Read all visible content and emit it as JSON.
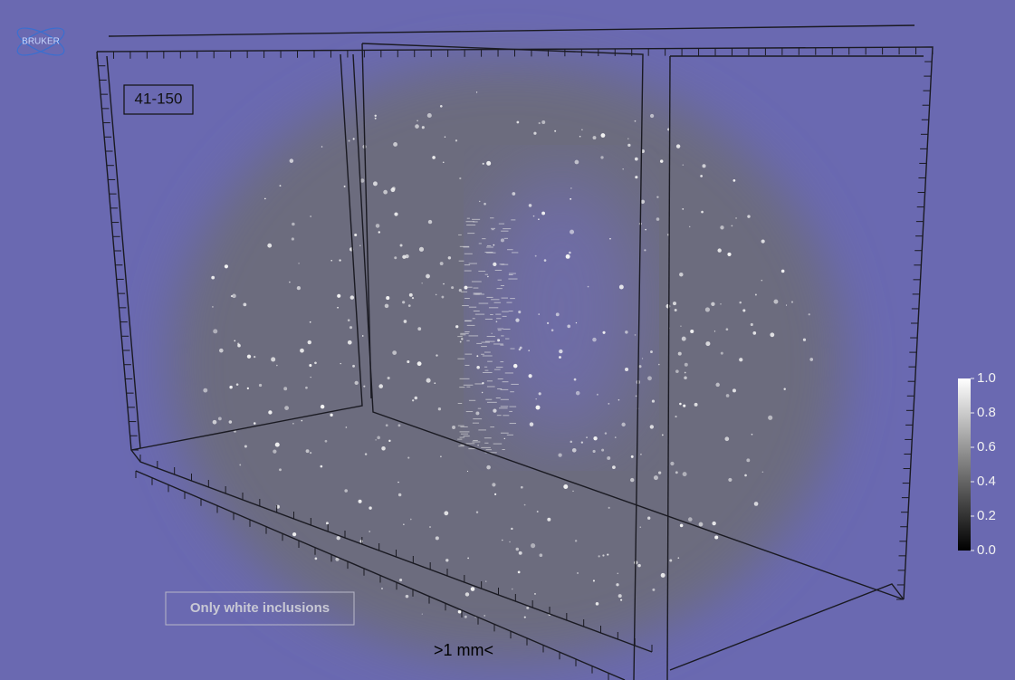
{
  "logo": "BRUKER",
  "range_label": "41-150",
  "button": "Only white inclusions",
  "scale_label": ">1 mm<",
  "colorbar": {
    "ticks": [
      {
        "value": 1,
        "label": "1.0"
      },
      {
        "value": 0.8,
        "label": "0.8"
      },
      {
        "value": 0.6,
        "label": "0.6"
      },
      {
        "value": 0.4,
        "label": "0.4"
      },
      {
        "value": 0.2,
        "label": "0.2"
      },
      {
        "value": 0,
        "label": "0.0"
      }
    ],
    "lim": [
      0,
      1
    ]
  }
}
